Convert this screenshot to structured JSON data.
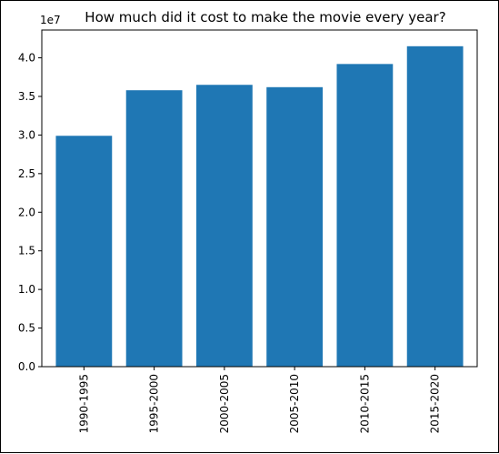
{
  "chart_data": {
    "type": "bar",
    "title": "How much did it cost to make the movie every year?",
    "xlabel": "",
    "ylabel": "",
    "scale_label": "1e7",
    "categories": [
      "1990-1995",
      "1995-2000",
      "2000-2005",
      "2005-2010",
      "2010-2015",
      "2015-2020"
    ],
    "values": [
      29900000,
      35800000,
      36500000,
      36200000,
      39200000,
      41500000
    ],
    "ylim": [
      0,
      43600000
    ],
    "yticks": [
      0,
      5000000,
      10000000,
      15000000,
      20000000,
      25000000,
      30000000,
      35000000,
      40000000
    ],
    "ytick_labels": [
      "0.0",
      "0.5",
      "1.0",
      "1.5",
      "2.0",
      "2.5",
      "3.0",
      "3.5",
      "4.0"
    ],
    "bar_color": "#1f77b4",
    "grid": false,
    "legend": false
  }
}
